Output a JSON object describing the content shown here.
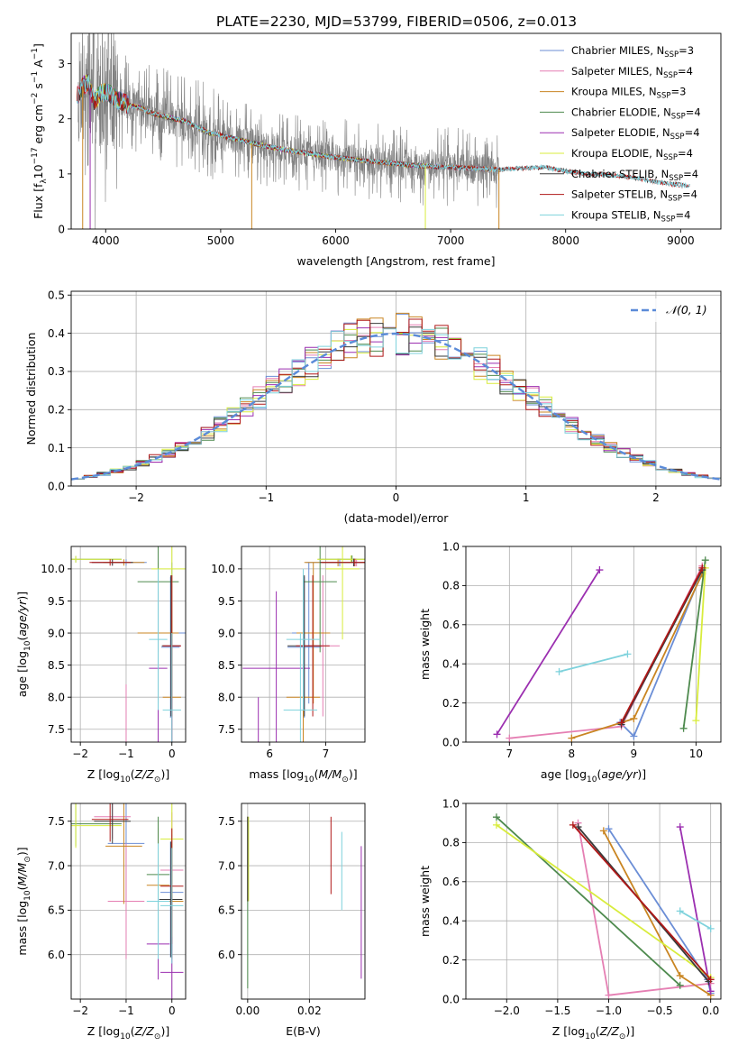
{
  "figure": {
    "title": "PLATE=2230, MJD=53799, FIBERID=0506, z=0.013"
  },
  "colors": {
    "Chabrier MILES": "#6b8ed6",
    "Salpeter MILES": "#e57fb3",
    "Kroupa MILES": "#c98522",
    "Chabrier ELODIE": "#4e8a4e",
    "Salpeter ELODIE": "#9b2fb0",
    "Kroupa ELODIE": "#d8ec3c",
    "Chabrier STELIB": "#3a3a3a",
    "Salpeter STELIB": "#b01818",
    "Kroupa STELIB": "#7ed2dc",
    "data": "#808080",
    "normal": "#5b8bd8",
    "grid": "#b0b0b0"
  },
  "chart_data": [
    {
      "id": "spectrum",
      "type": "line",
      "title": "PLATE=2230, MJD=53799, FIBERID=0506, z=0.013",
      "xlabel": "wavelength [Angstrom, rest frame]",
      "ylabel": "Flux [f_λ 10^-17 erg cm^-2 s^-1 A^-1]",
      "xlim": [
        3700,
        9350
      ],
      "ylim": [
        0,
        3.55
      ],
      "xticks": [
        4000,
        5000,
        6000,
        7000,
        8000,
        9000
      ],
      "yticks": [
        0,
        1,
        2,
        3
      ],
      "grid": false,
      "legend_position": "top-right",
      "data_series": "observed spectrum (grey)",
      "continuum": {
        "x": [
          3750,
          3800,
          3850,
          3900,
          3950,
          4000,
          4100,
          4200,
          4300,
          4400,
          4500,
          4600,
          4700,
          4800,
          4900,
          5000,
          5200,
          5400,
          5600,
          5800,
          6000,
          6200,
          6400,
          6600,
          6800,
          7000,
          7200,
          7400,
          7600,
          7800,
          8000,
          8200,
          8400,
          8600,
          8800,
          9000,
          9080
        ],
        "y": [
          2.4,
          2.6,
          2.65,
          2.3,
          2.45,
          2.5,
          2.35,
          2.25,
          2.2,
          2.1,
          2.05,
          2.0,
          1.95,
          1.85,
          1.75,
          1.7,
          1.6,
          1.5,
          1.42,
          1.36,
          1.3,
          1.25,
          1.21,
          1.17,
          1.14,
          1.12,
          1.1,
          1.08,
          1.1,
          1.12,
          1.05,
          1.0,
          0.98,
          0.93,
          0.85,
          0.8,
          0.78
        ]
      },
      "series": [
        {
          "name": "Chabrier MILES",
          "label_main": "Chabrier MILES, N",
          "label_sub": "SSP",
          "label_tail": "=3",
          "x_end": 7420
        },
        {
          "name": "Salpeter MILES",
          "label_main": "Salpeter MILES, N",
          "label_sub": "SSP",
          "label_tail": "=4",
          "x_end": 7420
        },
        {
          "name": "Kroupa MILES",
          "label_main": "Kroupa MILES, N",
          "label_sub": "SSP",
          "label_tail": "=3",
          "x_end": 7420
        },
        {
          "name": "Chabrier ELODIE",
          "label_main": "Chabrier ELODIE, N",
          "label_sub": "SSP",
          "label_tail": "=4",
          "x_end": 6800
        },
        {
          "name": "Salpeter ELODIE",
          "label_main": "Salpeter ELODIE, N",
          "label_sub": "SSP",
          "label_tail": "=4",
          "x_end": 6800
        },
        {
          "name": "Kroupa ELODIE",
          "label_main": "Kroupa ELODIE, N",
          "label_sub": "SSP",
          "label_tail": "=4",
          "x_end": 6800
        },
        {
          "name": "Chabrier STELIB",
          "label_main": "Chabrier STELIB, N",
          "label_sub": "SSP",
          "label_tail": "=4",
          "x_end": 9080
        },
        {
          "name": "Salpeter STELIB",
          "label_main": "Salpeter STELIB, N",
          "label_sub": "SSP",
          "label_tail": "=4",
          "x_end": 9080
        },
        {
          "name": "Kroupa STELIB",
          "label_main": "Kroupa STELIB, N",
          "label_sub": "SSP",
          "label_tail": "=4",
          "x_end": 9080
        }
      ]
    },
    {
      "id": "residuals",
      "type": "area",
      "xlabel": "(data-model)/error",
      "ylabel": "Normed distribution",
      "xlim": [
        -2.5,
        2.5
      ],
      "ylim": [
        0,
        0.51
      ],
      "xticks": [
        -2,
        -1,
        0,
        1,
        2
      ],
      "yticks": [
        0.0,
        0.1,
        0.2,
        0.3,
        0.4,
        0.5
      ],
      "grid": true,
      "legend_position": "top-right",
      "legend_label": "𝒩(0, 1)",
      "bin_width": 0.1
    },
    {
      "id": "age_vs_Z",
      "type": "scatter",
      "xlabel": "Z [log10(Z/Z☉)]",
      "ylabel": "age  [log10(age/yr)]",
      "xlim": [
        -2.2,
        0.3
      ],
      "ylim": [
        7.3,
        10.35
      ],
      "xticks": [
        -2,
        -1,
        0
      ],
      "yticks": [
        7.5,
        8.0,
        8.5,
        9.0,
        9.5,
        10.0
      ],
      "grid": true
    },
    {
      "id": "age_vs_mass",
      "type": "scatter",
      "xlabel": "mass [log10(M/M☉)]",
      "ylabel": "",
      "xlim": [
        5.5,
        7.7
      ],
      "ylim": [
        7.3,
        10.35
      ],
      "xticks": [
        6,
        7
      ],
      "yticks": [
        7.5,
        8.0,
        8.5,
        9.0,
        9.5,
        10.0
      ],
      "grid": true
    },
    {
      "id": "weight_vs_age",
      "type": "line",
      "xlabel": "age  [log10(age/yr)]",
      "ylabel": "mass weight",
      "xlim": [
        6.3,
        10.4
      ],
      "ylim": [
        0,
        1.0
      ],
      "xticks": [
        7,
        8,
        9,
        10
      ],
      "yticks": [
        0.0,
        0.2,
        0.4,
        0.6,
        0.8,
        1.0
      ],
      "grid": true
    },
    {
      "id": "mass_vs_Z",
      "type": "scatter",
      "xlabel": "Z [log10(Z/Z☉)]",
      "ylabel": "mass [log10(M/M☉)]",
      "xlim": [
        -2.2,
        0.3
      ],
      "ylim": [
        5.5,
        7.7
      ],
      "xticks": [
        -2,
        -1,
        0
      ],
      "yticks": [
        6.0,
        6.5,
        7.0,
        7.5
      ],
      "grid": true
    },
    {
      "id": "mass_vs_EBV",
      "type": "scatter",
      "xlabel": "E(B-V)",
      "ylabel": "",
      "xlim": [
        -0.002,
        0.038
      ],
      "ylim": [
        5.5,
        7.7
      ],
      "xticks": [
        0.0,
        0.02
      ],
      "yticks": [
        6.0,
        6.5,
        7.0,
        7.5
      ],
      "grid": true
    },
    {
      "id": "weight_vs_Z",
      "type": "line",
      "xlabel": "Z [log10(Z/Z☉)]",
      "ylabel": "mass weight",
      "xlim": [
        -2.4,
        0.1
      ],
      "ylim": [
        0,
        1.0
      ],
      "xticks": [
        -2.0,
        -1.5,
        -1.0,
        -0.5,
        0.0
      ],
      "yticks": [
        0.0,
        0.2,
        0.4,
        0.6,
        0.8,
        1.0
      ],
      "grid": true
    }
  ]
}
